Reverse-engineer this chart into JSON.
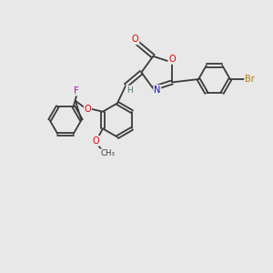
{
  "bg_color": "#e8e8e8",
  "bond_color": "#3a3a3a",
  "atom_colors": {
    "O": "#e00000",
    "N": "#1010cc",
    "F": "#bb00bb",
    "Br": "#bb7700",
    "H": "#507878",
    "C": "#3a3a3a"
  },
  "figsize": [
    3.0,
    3.0
  ],
  "dpi": 100,
  "lw": 1.3
}
